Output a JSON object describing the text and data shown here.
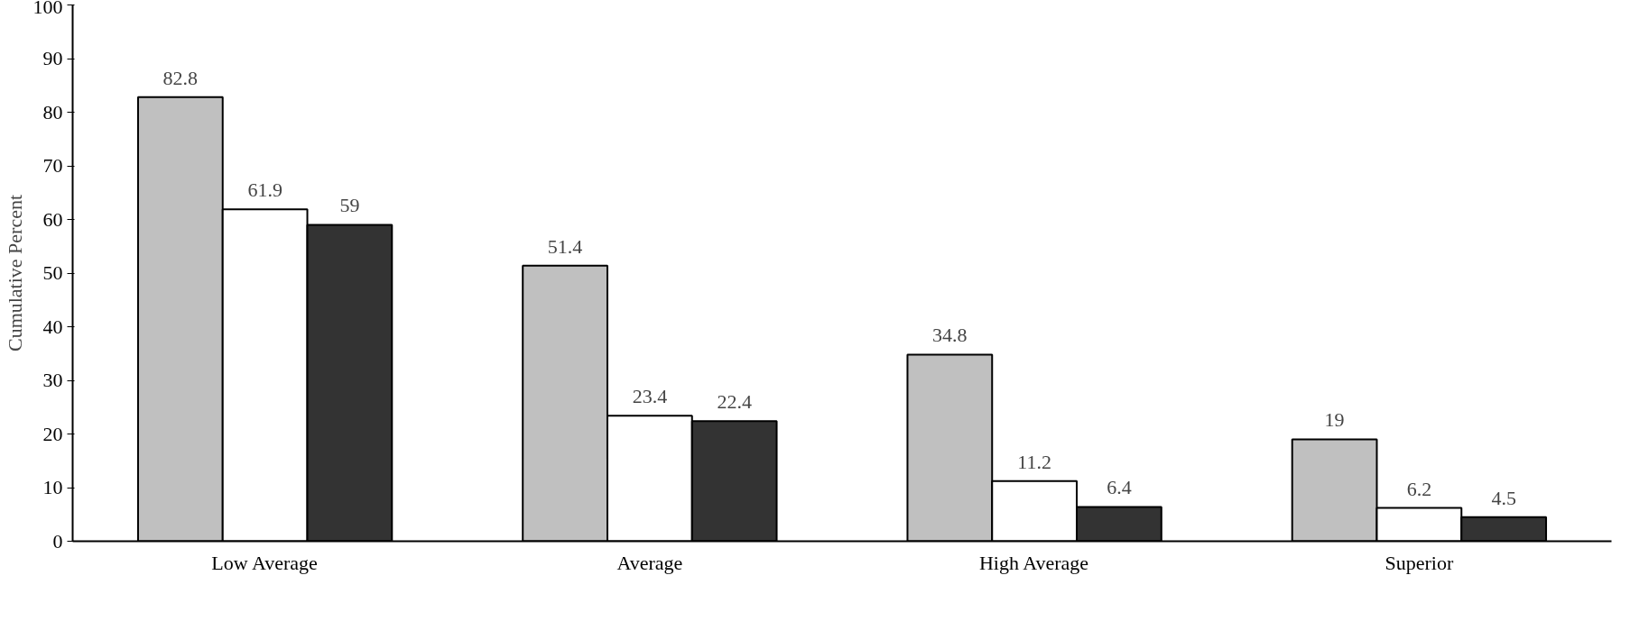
{
  "chart_data": {
    "type": "bar",
    "ylabel": "Cumulative Percent",
    "categories": [
      "Low Average",
      "Average",
      "High Average",
      "Superior"
    ],
    "series": [
      {
        "color": "#c0c0c0",
        "values": [
          82.8,
          51.4,
          34.8,
          19
        ]
      },
      {
        "color": "#ffffff",
        "values": [
          61.9,
          23.4,
          11.2,
          6.2
        ]
      },
      {
        "color": "#333333",
        "values": [
          59,
          22.4,
          6.4,
          4.5
        ]
      }
    ],
    "ylim": [
      0,
      100
    ],
    "yticks": [
      0,
      10,
      20,
      30,
      40,
      50,
      60,
      70,
      80,
      90,
      100
    ],
    "data_labels": true,
    "grid": false
  }
}
